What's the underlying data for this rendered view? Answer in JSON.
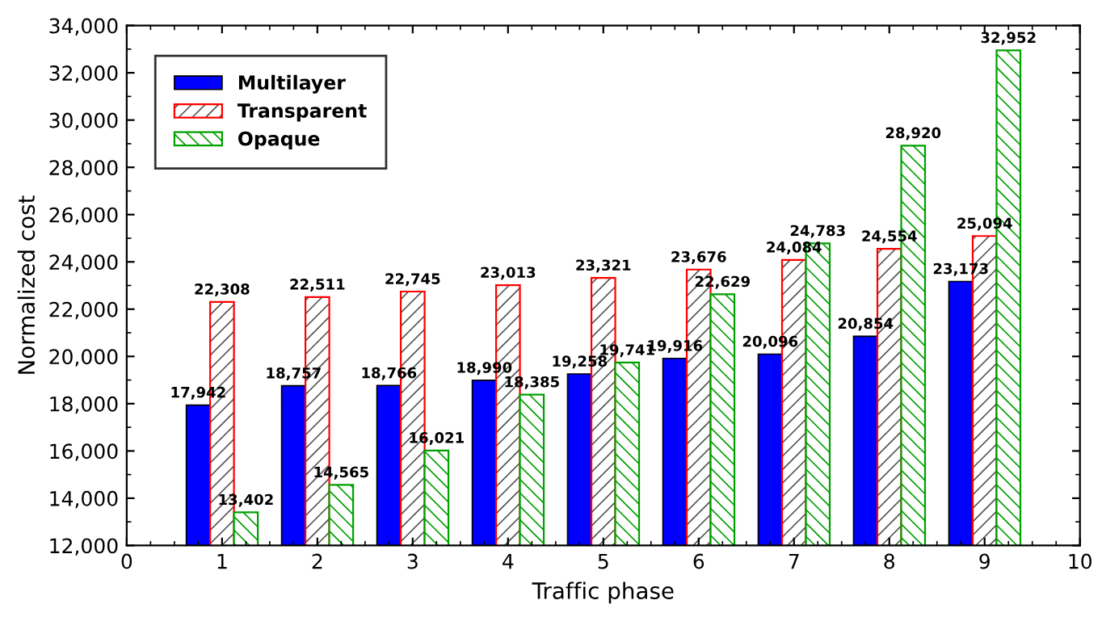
{
  "chart_data": {
    "type": "bar",
    "xlabel": "Traffic phase",
    "ylabel": "Normalized cost",
    "x": [
      1,
      2,
      3,
      4,
      5,
      6,
      7,
      8,
      9
    ],
    "series": [
      {
        "name": "Multilayer",
        "color": "#0000ff",
        "values": [
          17942,
          18757,
          18766,
          18990,
          19258,
          19916,
          20096,
          20854,
          23173
        ],
        "value_labels": [
          "17,942",
          "18,757",
          "18,766",
          "18,990",
          "19,258",
          "19,916",
          "20,096",
          "20,854",
          "23,173"
        ]
      },
      {
        "name": "Transparent",
        "color": "#ff0000",
        "values": [
          22308,
          22511,
          22745,
          23013,
          23321,
          23676,
          24084,
          24554,
          25094
        ],
        "value_labels": [
          "22,308",
          "22,511",
          "22,745",
          "23,013",
          "23,321",
          "23,676",
          "24,084",
          "24,554",
          "25,094"
        ]
      },
      {
        "name": "Opaque",
        "color": "#00a000",
        "values": [
          13402,
          14565,
          16021,
          18385,
          19741,
          22629,
          24783,
          28920,
          32952
        ],
        "value_labels": [
          "13,402",
          "14,565",
          "16,021",
          "18,385",
          "19,741",
          "22,629",
          "24,783",
          "28,920",
          "32,952"
        ]
      }
    ],
    "xlim": [
      0,
      10
    ],
    "xticks": [
      0,
      1,
      2,
      3,
      4,
      5,
      6,
      7,
      8,
      9,
      10
    ],
    "ylim": [
      12000,
      34000
    ],
    "yticks": [
      {
        "value": 12000,
        "label": "12,000"
      },
      {
        "value": 14000,
        "label": "14,000"
      },
      {
        "value": 16000,
        "label": "16,000"
      },
      {
        "value": 18000,
        "label": "18,000"
      },
      {
        "value": 20000,
        "label": "20,000"
      },
      {
        "value": 22000,
        "label": "22,000"
      },
      {
        "value": 24000,
        "label": "24,000"
      },
      {
        "value": 26000,
        "label": "26,000"
      },
      {
        "value": 28000,
        "label": "28,000"
      },
      {
        "value": 30000,
        "label": "30,000"
      },
      {
        "value": 32000,
        "label": "32,000"
      },
      {
        "value": 34000,
        "label": "34,000"
      }
    ],
    "grid": false,
    "legend": "top left"
  }
}
